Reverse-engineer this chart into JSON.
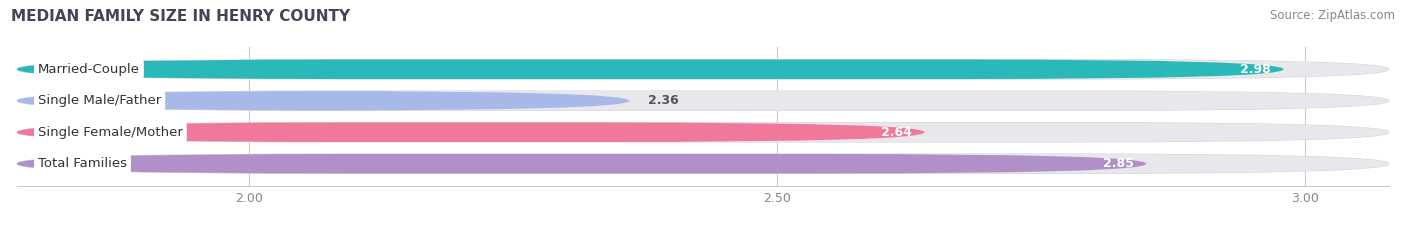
{
  "title": "MEDIAN FAMILY SIZE IN HENRY COUNTY",
  "source": "Source: ZipAtlas.com",
  "categories": [
    "Married-Couple",
    "Single Male/Father",
    "Single Female/Mother",
    "Total Families"
  ],
  "values": [
    2.98,
    2.36,
    2.64,
    2.85
  ],
  "bar_colors": [
    "#2ab8b8",
    "#a8b8e8",
    "#f07898",
    "#b090c8"
  ],
  "xmin": 1.78,
  "xmax": 3.08,
  "xticks": [
    2.0,
    2.5,
    3.0
  ],
  "xtick_labels": [
    "2.00",
    "2.50",
    "3.00"
  ],
  "bar_height": 0.62,
  "label_fontsize": 9.5,
  "value_fontsize": 9,
  "title_fontsize": 11,
  "source_fontsize": 8.5,
  "bg_color": "#ffffff",
  "bar_bg_color": "#e8e8ec",
  "bar_border_color": "#d0d0d8"
}
